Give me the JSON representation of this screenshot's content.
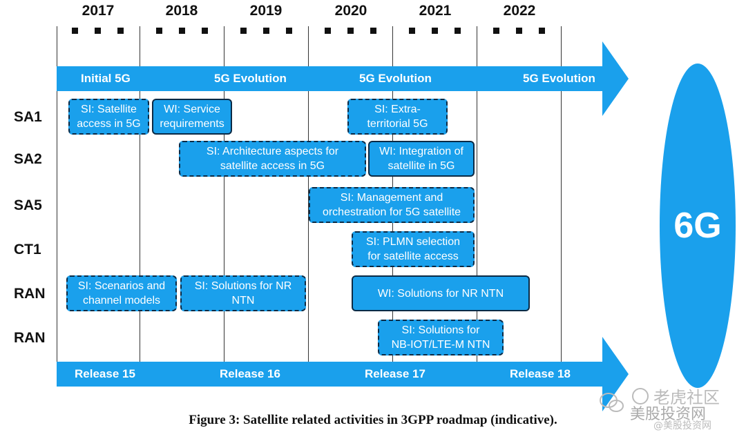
{
  "years": [
    "2017",
    "2018",
    "2019",
    "2020",
    "2021",
    "2022"
  ],
  "top_band": {
    "labels": [
      "Initial 5G",
      "5G Evolution",
      "5G Evolution",
      "5G Evolution"
    ],
    "color": "#1aa0ec"
  },
  "rows": [
    "SA1",
    "SA2",
    "SA5",
    "CT1",
    "RAN",
    "RAN"
  ],
  "activities": {
    "sa1_si_satellite": "SI: Satellite\naccess in 5G",
    "sa1_wi_service": "WI: Service\nrequirements",
    "sa1_si_extra": "SI: Extra-\nterritorial 5G",
    "sa2_si_arch": "SI: Architecture aspects for\nsatellite access in 5G",
    "sa2_wi_integration": "WI: Integration of\nsatellite in 5G",
    "sa5_si_mgmt": "SI: Management and\norchestration for 5G satellite",
    "ct1_si_plmn": "SI: PLMN selection\nfor satellite access",
    "ran_si_scenarios": "SI: Scenarios and\nchannel models",
    "ran_si_solutions": "SI: Solutions for NR\nNTN",
    "ran_wi_solutions": "WI: Solutions for NR NTN",
    "ran_si_nbiot": "SI: Solutions for\nNB-IOT/LTE-M NTN"
  },
  "bottom_band": {
    "labels": [
      "Release 15",
      "Release 16",
      "Release 17",
      "Release 18"
    ]
  },
  "future": "6G",
  "caption": "Figure 3: Satellite related activities in 3GPP roadmap (indicative).",
  "watermark": {
    "line1": "老虎社区",
    "line2": "美股投资网",
    "line3": "@美股投资网"
  },
  "colors": {
    "accent": "#1aa0ec",
    "border": "#0b2a45"
  }
}
